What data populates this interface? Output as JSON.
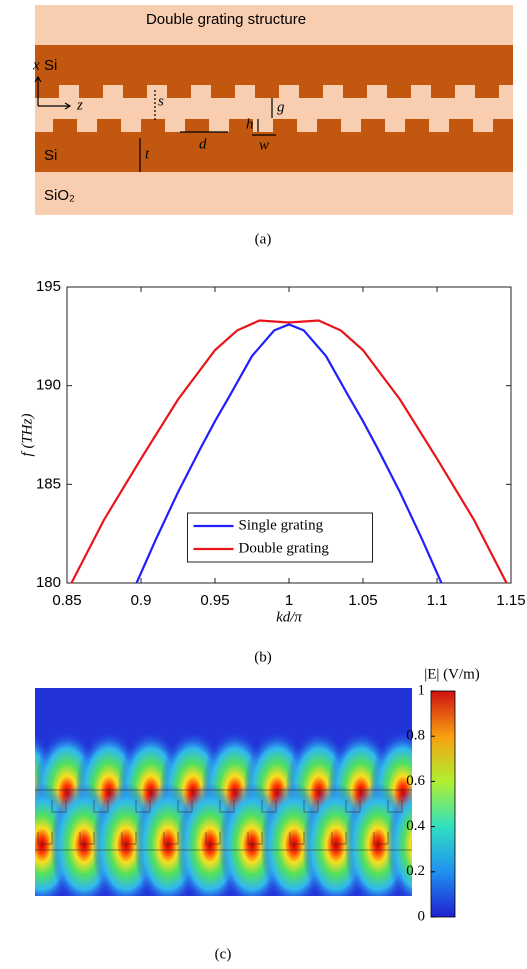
{
  "panel_a": {
    "title": "Double grating structure",
    "labels": {
      "x": "x",
      "si_top": "Si",
      "z": "z",
      "s": "s",
      "g": "g",
      "h": "h",
      "d": "d",
      "w": "w",
      "t": "t",
      "si_bottom": "Si",
      "sio2": "SiO₂"
    },
    "caption": "(a)"
  },
  "chart_data": {
    "type": "line",
    "xlabel": "kd/π",
    "ylabel": "f (THz)",
    "xlim": [
      0.85,
      1.15
    ],
    "xticks": [
      0.85,
      0.9,
      0.95,
      1,
      1.05,
      1.1,
      1.15
    ],
    "ylim": [
      180,
      195
    ],
    "yticks": [
      180,
      185,
      190,
      195
    ],
    "legend": "lower center",
    "series": [
      {
        "name": "Single grating",
        "color": "#1f1fff",
        "x": [
          0.897,
          0.91,
          0.925,
          0.94,
          0.95,
          0.96,
          0.975,
          0.99,
          1.0,
          1.01,
          1.025,
          1.04,
          1.05,
          1.06,
          1.075,
          1.09,
          1.103
        ],
        "values": [
          180,
          182.2,
          184.6,
          186.8,
          188.2,
          189.5,
          191.5,
          192.8,
          193.1,
          192.8,
          191.5,
          189.5,
          188.2,
          186.8,
          184.6,
          182.2,
          180
        ]
      },
      {
        "name": "Double grating",
        "color": "#e8151b",
        "x": [
          0.853,
          0.875,
          0.9,
          0.925,
          0.95,
          0.965,
          0.98,
          1.0,
          1.02,
          1.035,
          1.05,
          1.075,
          1.1,
          1.125,
          1.147
        ],
        "values": [
          180,
          183.2,
          186.3,
          189.3,
          191.8,
          192.8,
          193.3,
          193.2,
          193.3,
          192.8,
          191.8,
          189.3,
          186.3,
          183.2,
          180
        ]
      }
    ],
    "caption": "(b)"
  },
  "panel_c": {
    "colorbar_title": "|E| (V/m)",
    "clim": [
      0,
      1
    ],
    "ticks": [
      0,
      0.2,
      0.4,
      0.6,
      0.8,
      1
    ],
    "caption": "(c)"
  }
}
